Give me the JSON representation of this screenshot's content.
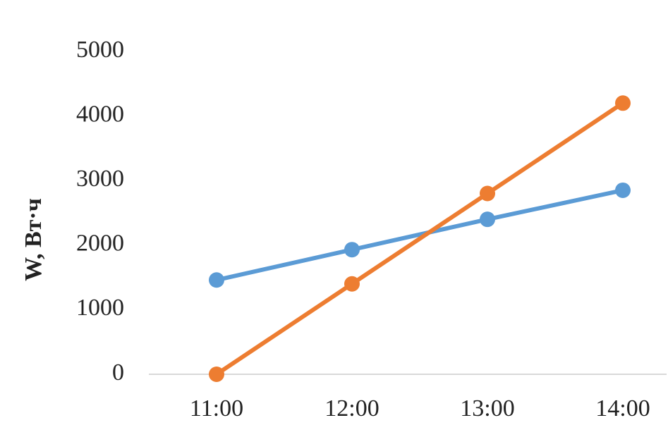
{
  "chart_data": {
    "type": "line",
    "y_label": "W, Вт·ч",
    "categories": [
      "11:00",
      "12:00",
      "13:00",
      "14:00"
    ],
    "series": [
      {
        "color": "#5b9bd5",
        "values": [
          1460,
          1930,
          2400,
          2850
        ]
      },
      {
        "color": "#ed7d31",
        "values": [
          0,
          1400,
          2800,
          4200
        ]
      }
    ],
    "ylim": [
      0,
      5000
    ],
    "yticks": [
      0,
      1000,
      2000,
      3000,
      4000,
      5000
    ],
    "grid": false
  }
}
